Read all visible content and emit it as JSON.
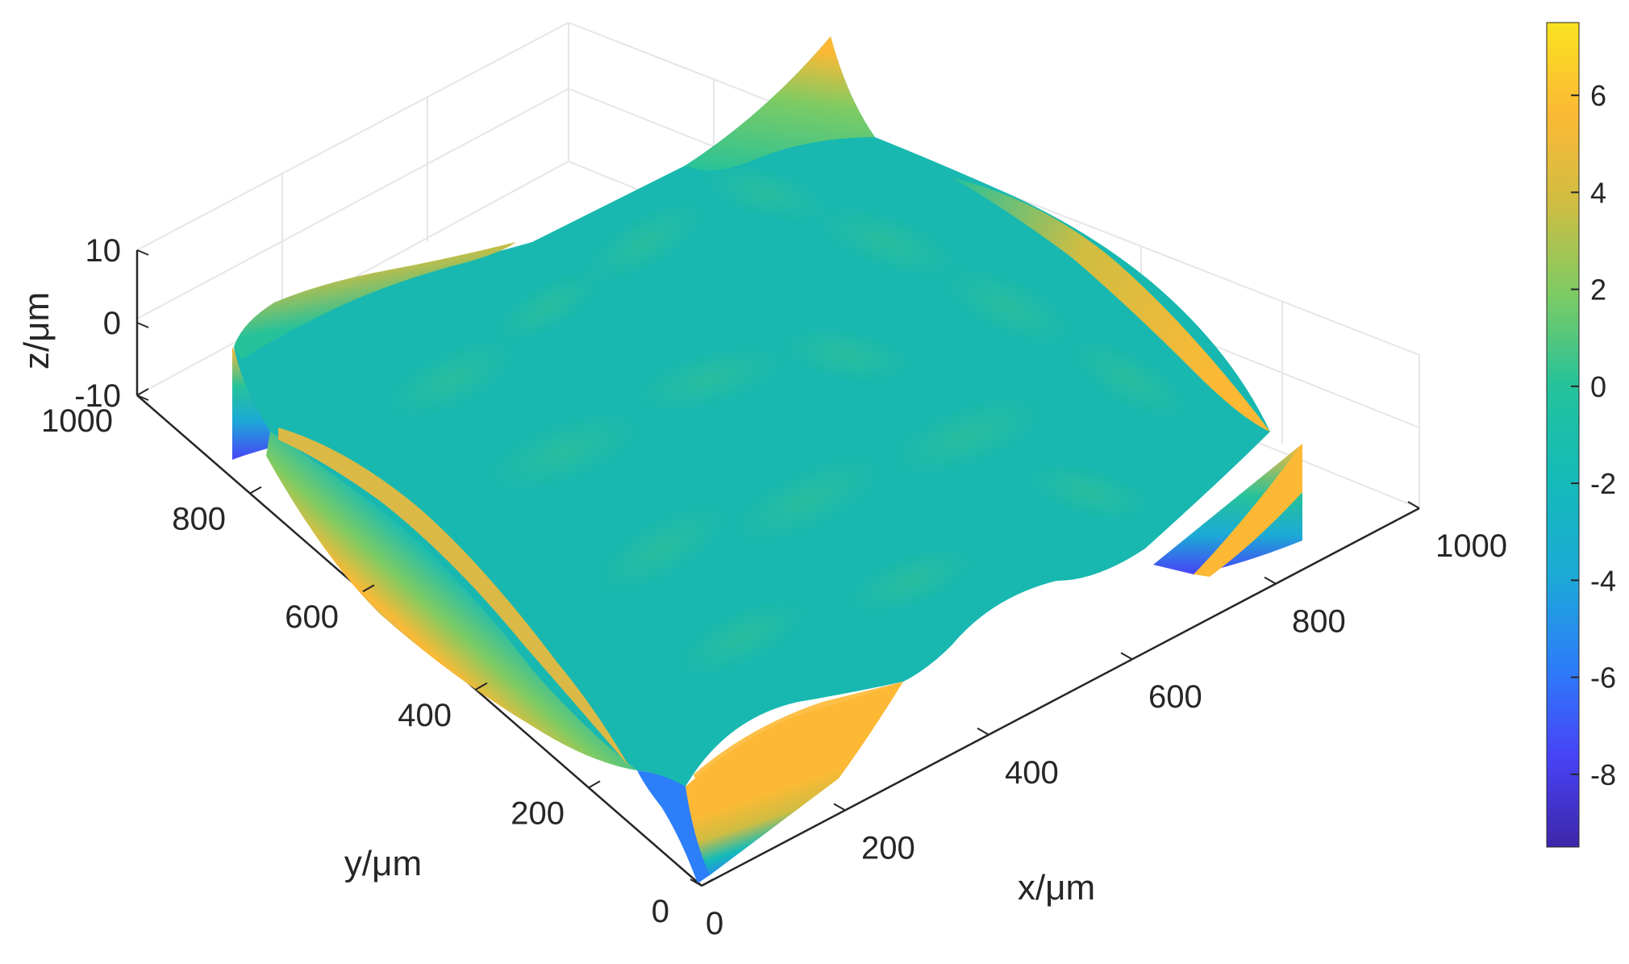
{
  "chart_data": {
    "type": "surface",
    "title": "",
    "xlabel": "x/μm",
    "ylabel": "y/μm",
    "zlabel": "z/μm",
    "xlim": [
      0,
      1000
    ],
    "ylim": [
      0,
      1000
    ],
    "zlim": [
      -10,
      10
    ],
    "x_ticks": [
      "0",
      "200",
      "400",
      "600",
      "800",
      "1000"
    ],
    "y_ticks": [
      "0",
      "200",
      "400",
      "600",
      "800",
      "1000"
    ],
    "z_ticks": [
      "10",
      "0",
      "-10"
    ],
    "grid": true,
    "colormap": "parula",
    "colorbar": {
      "range": [
        -9.5,
        7.5
      ],
      "ticks": [
        "6",
        "4",
        "2",
        "0",
        "-2",
        "-4",
        "-6",
        "-8"
      ],
      "colors": [
        "#3e26a8",
        "#4743f7",
        "#2c7ef9",
        "#1caad6",
        "#14bbb8",
        "#25c29a",
        "#7dcb63",
        "#cfbd42",
        "#fdb935",
        "#f9e21f"
      ]
    },
    "surface": {
      "description_values": "Flat central region near z=0 with small ripples (about 0 to 1.5). Edges rise to about +7 near the outer rim and drop to about -9 at the bottom of the side walls.",
      "center_z": 0,
      "ripple_amplitude": 1.5,
      "edge_max_z": 7,
      "edge_min_z": -9
    }
  }
}
